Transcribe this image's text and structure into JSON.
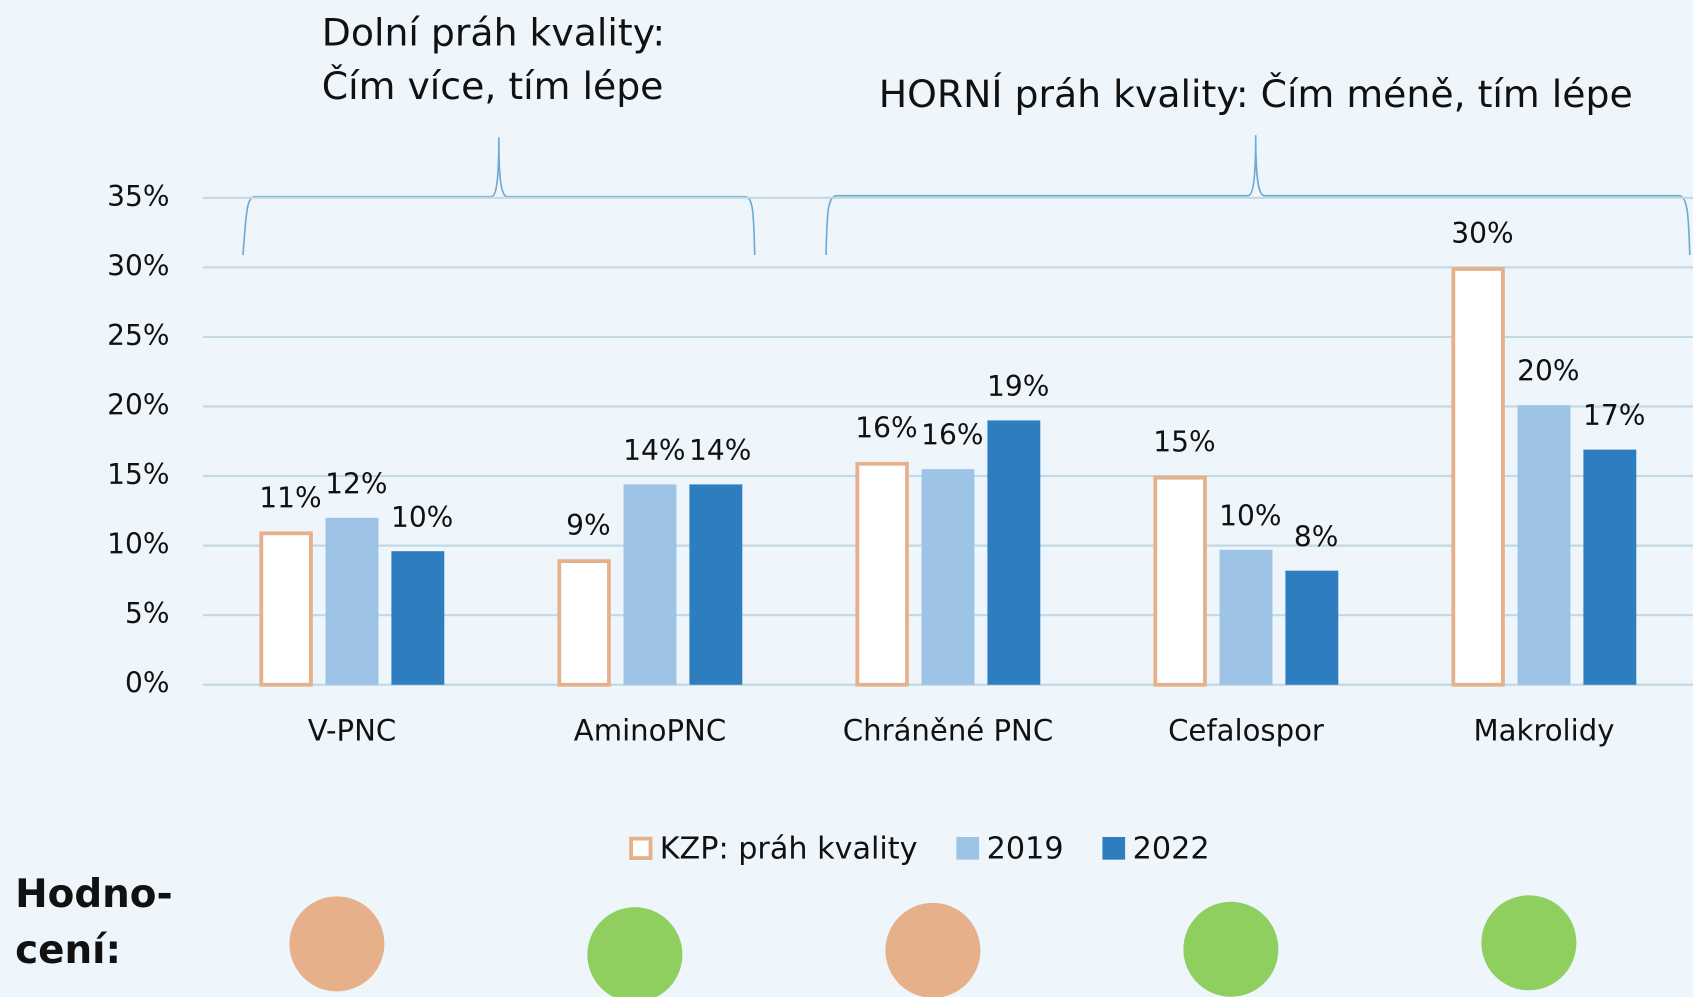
{
  "chart_data": {
    "type": "bar",
    "annotations": [
      [
        "Dolní práh kvality:",
        "Čím více, tím lépe"
      ],
      [
        "HORNÍ práh kvality: Čím méně, tím lépe"
      ]
    ],
    "categories": [
      "V-PNC",
      "AminoPNC",
      "Chráněné PNC",
      "Cefalospor",
      "Makrolidy"
    ],
    "series": [
      {
        "name": "KZP: práh kvality",
        "color": "#e6b08a",
        "outline": true,
        "values": [
          11,
          9,
          16,
          15,
          30
        ],
        "value_labels": [
          "11%",
          "9%",
          "16%",
          "15%",
          "30%"
        ]
      },
      {
        "name": "2019",
        "color": "#9dc3e6",
        "values": [
          12,
          14.4,
          15.5,
          9.7,
          20.1
        ],
        "value_labels": [
          "12%",
          "14%",
          "16%",
          "10%",
          "20%"
        ]
      },
      {
        "name": "2022",
        "color": "#2e7dbf",
        "values": [
          9.6,
          14.4,
          19,
          8.2,
          16.9
        ],
        "value_labels": [
          "10%",
          "14%",
          "19%",
          "8%",
          "17%"
        ]
      }
    ],
    "ylim": [
      0,
      35
    ],
    "yticks": [
      {
        "value": 0,
        "label": "0%"
      },
      {
        "value": 5,
        "label": "5%"
      },
      {
        "value": 10,
        "label": "10%"
      },
      {
        "value": 15,
        "label": "15%"
      },
      {
        "value": 20,
        "label": "20%"
      },
      {
        "value": 25,
        "label": "25%"
      },
      {
        "value": 30,
        "label": "30%"
      },
      {
        "value": 35,
        "label": "35%"
      }
    ],
    "grid": true,
    "legend": "bottom",
    "rating_label": [
      "Hodno-",
      "cení:"
    ],
    "ratings": [
      "#e6b08a",
      "#8ecf5f",
      "#e6b08a",
      "#8ecf5f",
      "#8ecf5f"
    ]
  }
}
